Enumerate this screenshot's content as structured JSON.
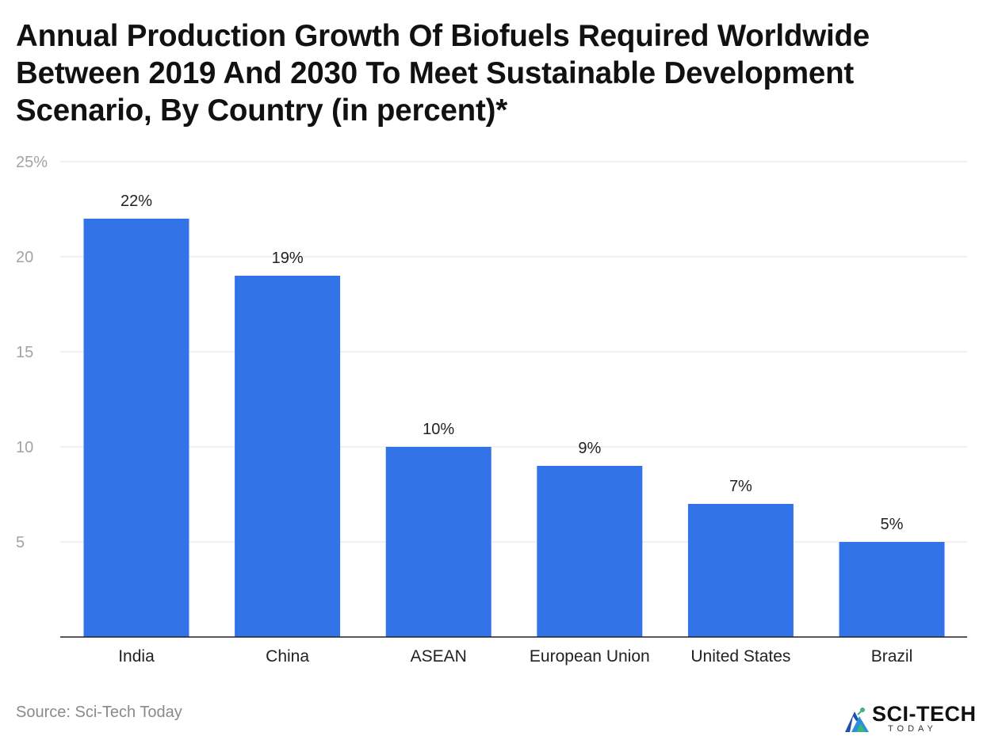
{
  "title": "Annual Production Growth Of Biofuels Required Worldwide Between 2019 And 2030 To Meet Sustainable Development Scenario, By Country (in percent)*",
  "source": "Source: Sci-Tech Today",
  "logo": {
    "name": "SCI-TECH",
    "sub": "TODAY"
  },
  "colors": {
    "bar": "#3373e8",
    "grid": "#e3e3e3",
    "axis": "#222222",
    "tick_label": "#a3a3a3"
  },
  "chart_data": {
    "type": "bar",
    "categories": [
      "India",
      "China",
      "ASEAN",
      "European Union",
      "United States",
      "Brazil"
    ],
    "values": [
      22,
      19,
      10,
      9,
      7,
      5
    ],
    "data_labels": [
      "22%",
      "19%",
      "10%",
      "9%",
      "7%",
      "5%"
    ],
    "ylim": [
      0,
      25
    ],
    "yticks": [
      5,
      10,
      15,
      20,
      25
    ],
    "ytick_labels": [
      "5",
      "10",
      "15",
      "20",
      "25%"
    ],
    "grid": true,
    "legend": "none"
  }
}
